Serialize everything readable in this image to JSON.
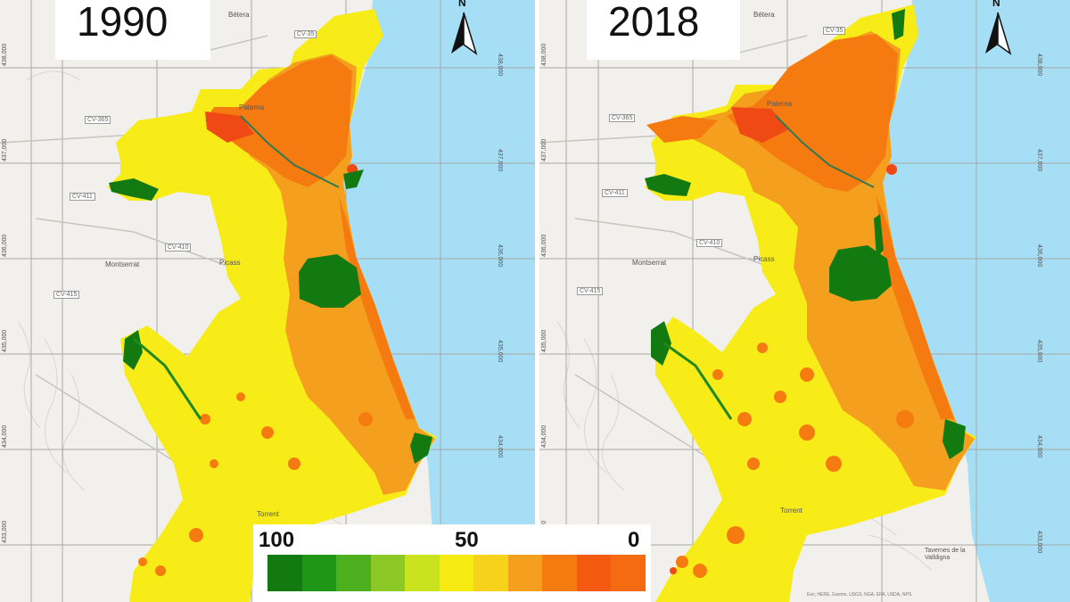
{
  "maps": [
    {
      "year": "1990",
      "towns": [
        "Bétera",
        "Paterna",
        "Picass",
        "Montserrat",
        "Torrent"
      ],
      "roads": [
        "CV-35",
        "CV-365",
        "CV-411",
        "CV-410",
        "CV-415"
      ],
      "coord_labels": [
        "438,000",
        "437,000",
        "436,000",
        "435,000",
        "434,000",
        "433,000"
      ]
    },
    {
      "year": "2018",
      "towns": [
        "Bétera",
        "Paterna",
        "Picass",
        "Montserrat",
        "Torrent",
        "Tavernes de la Valldigna"
      ],
      "roads": [
        "CV-35",
        "CV-365",
        "CV-411",
        "CV-410",
        "CV-415"
      ],
      "coord_labels": [
        "438,000",
        "437,000",
        "436,000",
        "435,000",
        "434,000",
        "433,000"
      ],
      "attribution": "Esri, HERE, Garmin, USGS, NGA, EPA, USDA, NPS"
    }
  ],
  "north_arrow": {
    "icon": "north-arrow-icon",
    "label": "N"
  },
  "legend": {
    "label_high": "100",
    "label_mid": "50",
    "label_low": "0",
    "colors": [
      "#137a12",
      "#1f9616",
      "#4caf1e",
      "#8cc826",
      "#c9e31f",
      "#f5ea12",
      "#f7d21a",
      "#f4a01e",
      "#f57b10",
      "#f45a10",
      "#f56b12"
    ]
  },
  "colors": {
    "water": "#a6dff5",
    "basemap": "#f1f0ec",
    "high_class": "#f7ec18",
    "mid_class": "#f4a01e",
    "urban_class": "#f57b10",
    "forest_class": "#137a12"
  }
}
